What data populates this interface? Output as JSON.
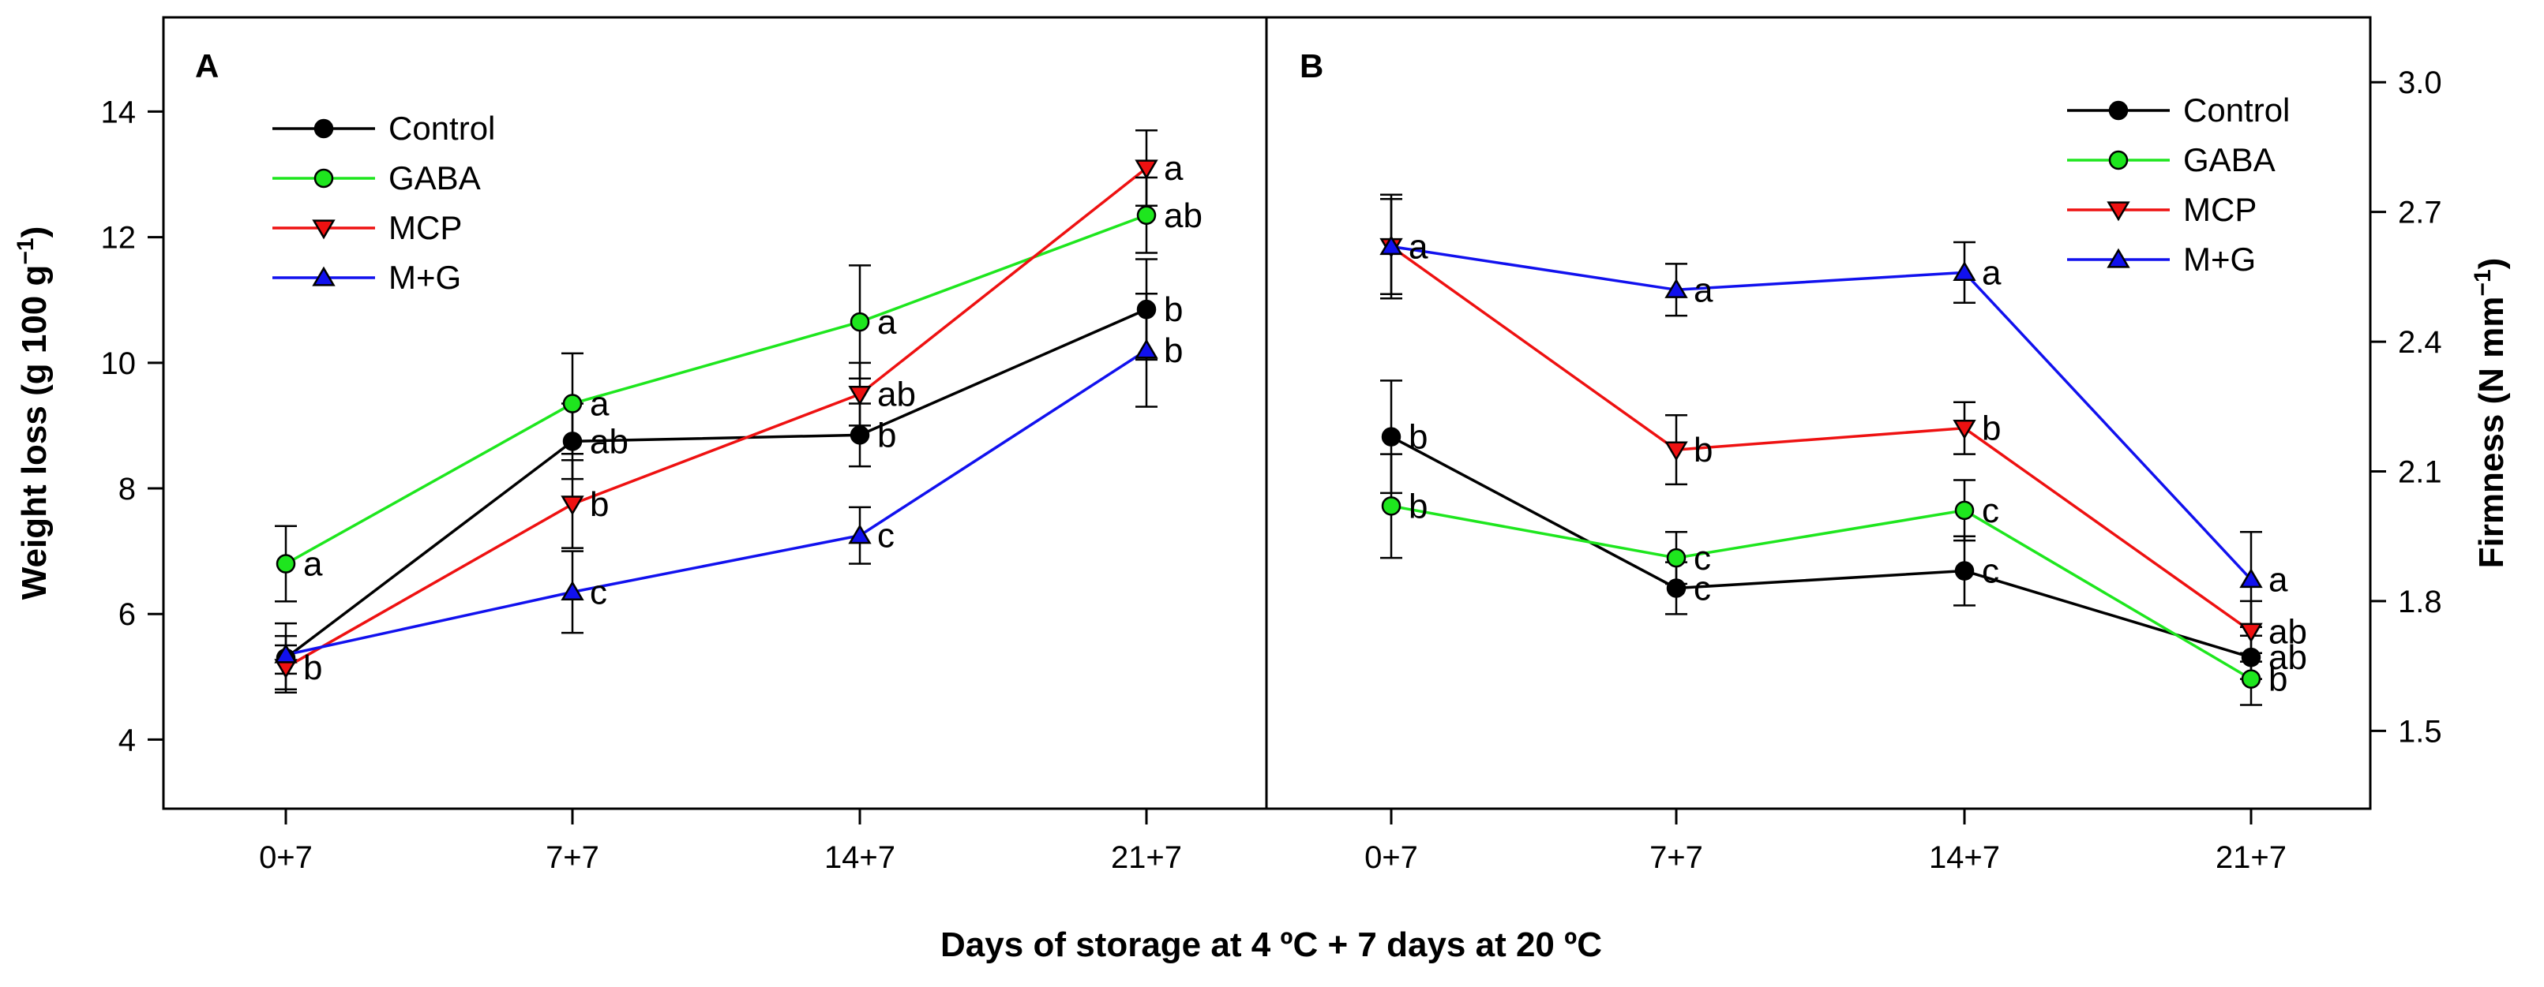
{
  "figure": {
    "xlabel": "Days of storage at 4 ºC + 7 days at 20 ºC"
  },
  "colors": {
    "Control": "#000000",
    "GABA": "#1ee61e",
    "MCP": "#ee1111",
    "M+G": "#1111ee",
    "frame": "#000000"
  },
  "chart_data": [
    {
      "panel": "A",
      "type": "line",
      "title": "A",
      "categories": [
        "0+7",
        "7+7",
        "14+7",
        "21+7"
      ],
      "ylabel": "Weight loss (g 100 g⁻¹)",
      "ylim": [
        2.9,
        15.5
      ],
      "yticks": [
        4,
        6,
        8,
        10,
        12,
        14
      ],
      "y_axis_side": "left",
      "legend_position": "top-left",
      "series": [
        {
          "name": "Control",
          "marker": "circle",
          "values": [
            5.3,
            8.75,
            8.85,
            10.85
          ],
          "errors": [
            0.55,
            0.6,
            0.5,
            0.8
          ],
          "letters": [
            "",
            "ab",
            "b",
            "b"
          ]
        },
        {
          "name": "GABA",
          "marker": "circle",
          "values": [
            6.8,
            9.35,
            10.65,
            12.35
          ],
          "errors": [
            0.6,
            0.8,
            0.9,
            0.6
          ],
          "letters": [
            "a",
            "a",
            "a",
            "ab"
          ]
        },
        {
          "name": "MCP",
          "marker": "triangle-down",
          "values": [
            5.15,
            7.75,
            9.5,
            13.1
          ],
          "errors": [
            0.35,
            0.7,
            0.5,
            0.6
          ],
          "letters": [
            "b",
            "b",
            "ab",
            "a"
          ]
        },
        {
          "name": "M+G",
          "marker": "triangle-up",
          "values": [
            5.35,
            6.35,
            7.25,
            10.2
          ],
          "errors": [
            0.3,
            0.65,
            0.45,
            0.9
          ],
          "letters": [
            "",
            "c",
            "c",
            "b"
          ]
        }
      ]
    },
    {
      "panel": "B",
      "type": "line",
      "title": "B",
      "categories": [
        "0+7",
        "7+7",
        "14+7",
        "21+7"
      ],
      "ylabel": "Firmness (N mm⁻¹)",
      "ylim": [
        1.32,
        3.15
      ],
      "yticks": [
        1.5,
        1.8,
        2.1,
        2.4,
        2.7,
        3.0
      ],
      "ytick_labels": [
        "1.5",
        "1.8",
        "2.1",
        "2.4",
        "2.7",
        "3.0"
      ],
      "y_axis_side": "right",
      "legend_position": "top-right",
      "series": [
        {
          "name": "Control",
          "marker": "circle",
          "values": [
            2.18,
            1.83,
            1.87,
            1.67
          ],
          "errors": [
            0.13,
            0.06,
            0.08,
            0.05
          ],
          "letters": [
            "b",
            "c",
            "c",
            "ab"
          ]
        },
        {
          "name": "GABA",
          "marker": "circle",
          "values": [
            2.02,
            1.9,
            2.01,
            1.62
          ],
          "errors": [
            0.12,
            0.06,
            0.07,
            0.06
          ],
          "letters": [
            "b",
            "c",
            "c",
            "b"
          ]
        },
        {
          "name": "MCP",
          "marker": "triangle-down",
          "values": [
            2.62,
            2.15,
            2.2,
            1.73
          ],
          "errors": [
            0.11,
            0.08,
            0.06,
            0.07
          ],
          "letters": [
            "a",
            "b",
            "b",
            "ab"
          ]
        },
        {
          "name": "M+G",
          "marker": "triangle-up",
          "values": [
            2.62,
            2.52,
            2.56,
            1.85
          ],
          "errors": [
            0.12,
            0.06,
            0.07,
            0.11
          ],
          "letters": [
            "a",
            "a",
            "a",
            "a"
          ]
        }
      ]
    }
  ]
}
